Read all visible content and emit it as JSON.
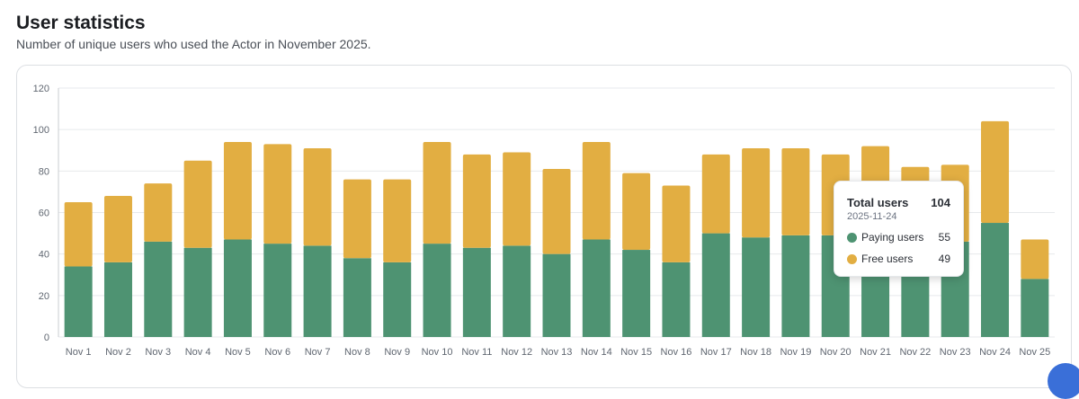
{
  "header": {
    "title": "User statistics",
    "subtitle": "Number of unique users who used the Actor in November 2025."
  },
  "colors": {
    "paying": "#4e9372",
    "free": "#e2ae42",
    "grid": "#e7e9ec"
  },
  "chart_data": {
    "type": "bar",
    "stacked": true,
    "categories": [
      "Nov 1",
      "Nov 2",
      "Nov 3",
      "Nov 4",
      "Nov 5",
      "Nov 6",
      "Nov 7",
      "Nov 8",
      "Nov 9",
      "Nov 10",
      "Nov 11",
      "Nov 12",
      "Nov 13",
      "Nov 14",
      "Nov 15",
      "Nov 16",
      "Nov 17",
      "Nov 18",
      "Nov 19",
      "Nov 20",
      "Nov 21",
      "Nov 22",
      "Nov 23",
      "Nov 24",
      "Nov 25"
    ],
    "series": [
      {
        "name": "Paying users",
        "values": [
          34,
          36,
          46,
          43,
          47,
          45,
          44,
          38,
          36,
          45,
          43,
          44,
          40,
          47,
          42,
          36,
          50,
          48,
          49,
          49,
          46,
          46,
          46,
          55,
          28
        ]
      },
      {
        "name": "Free users",
        "values": [
          31,
          32,
          28,
          42,
          47,
          48,
          47,
          38,
          40,
          49,
          45,
          45,
          41,
          47,
          37,
          37,
          38,
          43,
          42,
          39,
          46,
          36,
          37,
          49,
          19
        ]
      }
    ],
    "ylim": [
      0,
      120
    ],
    "yticks": [
      0,
      20,
      40,
      60,
      80,
      100,
      120
    ],
    "grid": true,
    "legend": "tooltip"
  },
  "tooltip": {
    "title": "Total users",
    "total": "104",
    "date": "2025-11-24",
    "rows": [
      {
        "label": "Paying users",
        "value": "55"
      },
      {
        "label": "Free users",
        "value": "49"
      }
    ]
  }
}
